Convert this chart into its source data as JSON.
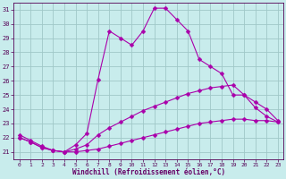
{
  "xlabel": "Windchill (Refroidissement éolien,°C)",
  "xlim": [
    -0.5,
    23.5
  ],
  "ylim": [
    20.5,
    31.5
  ],
  "xticks": [
    0,
    1,
    2,
    3,
    4,
    5,
    6,
    7,
    8,
    9,
    10,
    11,
    12,
    13,
    14,
    15,
    16,
    17,
    18,
    19,
    20,
    21,
    22,
    23
  ],
  "yticks": [
    21,
    22,
    23,
    24,
    25,
    26,
    27,
    28,
    29,
    30,
    31
  ],
  "bg_color": "#c8ecec",
  "grid_color": "#a0c8c8",
  "line_color": "#aa00aa",
  "line1_x": [
    0,
    1,
    2,
    3,
    4,
    5,
    6,
    7,
    8,
    9,
    10,
    11,
    12,
    13,
    14,
    15,
    16,
    17,
    18,
    19,
    20,
    21,
    22,
    23
  ],
  "line1_y": [
    22.2,
    21.8,
    21.4,
    21.1,
    21.0,
    21.5,
    22.3,
    26.1,
    29.5,
    29.0,
    28.5,
    29.5,
    31.1,
    31.1,
    30.3,
    29.5,
    27.5,
    27.0,
    26.5,
    25.0,
    25.0,
    24.1,
    23.5,
    23.1
  ],
  "line2_x": [
    0,
    1,
    2,
    3,
    4,
    5,
    6,
    7,
    8,
    9,
    10,
    11,
    12,
    13,
    14,
    15,
    16,
    17,
    18,
    19,
    20,
    21,
    22,
    23
  ],
  "line2_y": [
    22.0,
    21.7,
    21.3,
    21.1,
    21.0,
    21.2,
    21.5,
    22.2,
    22.7,
    23.1,
    23.5,
    23.9,
    24.2,
    24.5,
    24.8,
    25.1,
    25.3,
    25.5,
    25.6,
    25.7,
    25.0,
    24.5,
    24.0,
    23.2
  ],
  "line3_x": [
    0,
    1,
    2,
    3,
    4,
    5,
    6,
    7,
    8,
    9,
    10,
    11,
    12,
    13,
    14,
    15,
    16,
    17,
    18,
    19,
    20,
    21,
    22,
    23
  ],
  "line3_y": [
    22.0,
    21.7,
    21.3,
    21.1,
    21.0,
    21.0,
    21.1,
    21.2,
    21.4,
    21.6,
    21.8,
    22.0,
    22.2,
    22.4,
    22.6,
    22.8,
    23.0,
    23.1,
    23.2,
    23.3,
    23.3,
    23.2,
    23.2,
    23.1
  ]
}
